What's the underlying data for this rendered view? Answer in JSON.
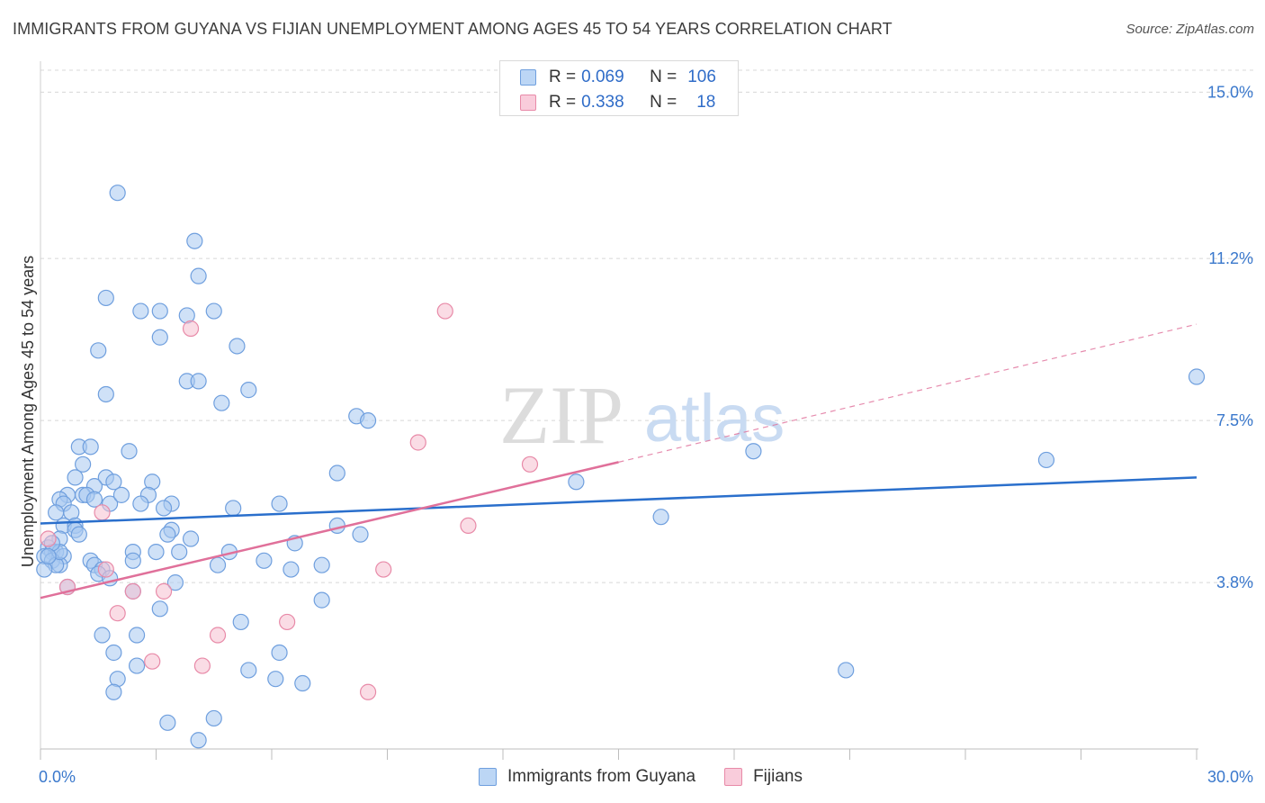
{
  "title": "IMMIGRANTS FROM GUYANA VS FIJIAN UNEMPLOYMENT AMONG AGES 45 TO 54 YEARS CORRELATION CHART",
  "source": "Source: ZipAtlas.com",
  "watermark": {
    "zip": "ZIP",
    "atlas": "atlas"
  },
  "legend_top": {
    "rows": [
      {
        "r_label": "R =",
        "r_value": "0.069",
        "n_label": "N =",
        "n_value": "106"
      },
      {
        "r_label": "R =",
        "r_value": "0.338",
        "n_label": "N =",
        "n_value": "18"
      }
    ]
  },
  "colors": {
    "blue_fill": "#a8c8f0",
    "blue_stroke": "#6f9fde",
    "blue_line": "#2a6fcc",
    "pink_fill": "#f6bfd0",
    "pink_stroke": "#e88aa8",
    "pink_line": "#e0709a",
    "tick_label": "#3a78cc",
    "grid": "#d8d8d8"
  },
  "chart_data": {
    "type": "scatter",
    "title": "IMMIGRANTS FROM GUYANA VS FIJIAN UNEMPLOYMENT AMONG AGES 45 TO 54 YEARS CORRELATION CHART",
    "xlabel": "",
    "ylabel": "Unemployment Among Ages 45 to 54 years",
    "xlim": [
      0,
      30
    ],
    "ylim": [
      0,
      15.5
    ],
    "x_tick_labels": [
      "0.0%",
      "30.0%"
    ],
    "y_ticks": [
      3.8,
      7.5,
      11.2,
      15.0
    ],
    "y_tick_labels": [
      "3.8%",
      "7.5%",
      "11.2%",
      "15.0%"
    ],
    "grid": true,
    "legend_position": "bottom",
    "series": [
      {
        "name": "Immigrants from Guyana",
        "color": "blue",
        "trend": {
          "x0": 0.0,
          "y0": 5.15,
          "x1": 30.0,
          "y1": 6.2
        },
        "points": [
          [
            2.0,
            12.7
          ],
          [
            4.0,
            11.6
          ],
          [
            4.1,
            10.8
          ],
          [
            1.7,
            10.3
          ],
          [
            2.6,
            10.0
          ],
          [
            3.1,
            10.0
          ],
          [
            3.8,
            9.9
          ],
          [
            4.5,
            10.0
          ],
          [
            3.1,
            9.4
          ],
          [
            5.1,
            9.2
          ],
          [
            1.5,
            9.1
          ],
          [
            3.8,
            8.4
          ],
          [
            4.1,
            8.4
          ],
          [
            5.4,
            8.2
          ],
          [
            1.7,
            8.1
          ],
          [
            4.7,
            7.9
          ],
          [
            8.2,
            7.6
          ],
          [
            8.5,
            7.5
          ],
          [
            1.0,
            6.9
          ],
          [
            1.3,
            6.9
          ],
          [
            2.3,
            6.8
          ],
          [
            1.1,
            6.5
          ],
          [
            7.7,
            6.3
          ],
          [
            1.7,
            6.2
          ],
          [
            1.9,
            6.1
          ],
          [
            2.9,
            6.1
          ],
          [
            1.4,
            6.0
          ],
          [
            0.7,
            5.8
          ],
          [
            1.1,
            5.8
          ],
          [
            1.2,
            5.8
          ],
          [
            2.8,
            5.8
          ],
          [
            0.5,
            5.7
          ],
          [
            0.6,
            5.6
          ],
          [
            1.8,
            5.6
          ],
          [
            2.6,
            5.6
          ],
          [
            3.4,
            5.6
          ],
          [
            5.0,
            5.5
          ],
          [
            6.2,
            5.6
          ],
          [
            3.2,
            5.5
          ],
          [
            0.4,
            5.4
          ],
          [
            0.8,
            5.4
          ],
          [
            0.6,
            5.1
          ],
          [
            0.9,
            5.1
          ],
          [
            7.7,
            5.1
          ],
          [
            3.4,
            5.0
          ],
          [
            0.9,
            5.0
          ],
          [
            1.0,
            4.9
          ],
          [
            8.3,
            4.9
          ],
          [
            3.3,
            4.9
          ],
          [
            3.9,
            4.8
          ],
          [
            0.5,
            4.8
          ],
          [
            6.6,
            4.7
          ],
          [
            0.2,
            4.6
          ],
          [
            0.3,
            4.5
          ],
          [
            0.4,
            4.5
          ],
          [
            2.4,
            4.5
          ],
          [
            3.0,
            4.5
          ],
          [
            3.6,
            4.5
          ],
          [
            4.9,
            4.5
          ],
          [
            0.6,
            4.4
          ],
          [
            0.1,
            4.4
          ],
          [
            0.3,
            4.3
          ],
          [
            2.4,
            4.3
          ],
          [
            1.3,
            4.3
          ],
          [
            0.5,
            4.2
          ],
          [
            5.8,
            4.3
          ],
          [
            7.3,
            4.2
          ],
          [
            0.4,
            4.2
          ],
          [
            0.1,
            4.1
          ],
          [
            1.4,
            4.2
          ],
          [
            4.6,
            4.2
          ],
          [
            1.6,
            4.1
          ],
          [
            6.5,
            4.1
          ],
          [
            1.5,
            4.0
          ],
          [
            1.8,
            3.9
          ],
          [
            3.5,
            3.8
          ],
          [
            0.7,
            3.7
          ],
          [
            2.4,
            3.6
          ],
          [
            7.3,
            3.4
          ],
          [
            3.1,
            3.2
          ],
          [
            5.2,
            2.9
          ],
          [
            1.6,
            2.6
          ],
          [
            2.5,
            2.6
          ],
          [
            1.9,
            2.2
          ],
          [
            6.2,
            2.2
          ],
          [
            2.5,
            1.9
          ],
          [
            5.4,
            1.8
          ],
          [
            20.9,
            1.8
          ],
          [
            2.0,
            1.6
          ],
          [
            6.1,
            1.6
          ],
          [
            6.8,
            1.5
          ],
          [
            1.9,
            1.3
          ],
          [
            4.5,
            0.7
          ],
          [
            3.3,
            0.6
          ],
          [
            4.1,
            0.2
          ],
          [
            13.9,
            6.1
          ],
          [
            16.1,
            5.3
          ],
          [
            18.5,
            6.8
          ],
          [
            26.1,
            6.6
          ],
          [
            30.0,
            8.5
          ],
          [
            2.1,
            5.8
          ],
          [
            0.9,
            6.2
          ],
          [
            1.4,
            5.7
          ],
          [
            0.5,
            4.5
          ],
          [
            0.3,
            4.7
          ],
          [
            0.2,
            4.4
          ]
        ]
      },
      {
        "name": "Fijians",
        "color": "pink",
        "trend": {
          "x0": 0.0,
          "y0": 3.45,
          "x1": 15.0,
          "y1": 6.55,
          "dash_to_x": 30.0,
          "dash_to_y": 9.7
        },
        "points": [
          [
            10.5,
            10.0
          ],
          [
            3.9,
            9.6
          ],
          [
            9.8,
            7.0
          ],
          [
            12.7,
            6.5
          ],
          [
            1.6,
            5.4
          ],
          [
            11.1,
            5.1
          ],
          [
            8.9,
            4.1
          ],
          [
            1.7,
            4.1
          ],
          [
            0.7,
            3.7
          ],
          [
            2.4,
            3.6
          ],
          [
            3.2,
            3.6
          ],
          [
            2.0,
            3.1
          ],
          [
            6.4,
            2.9
          ],
          [
            4.6,
            2.6
          ],
          [
            2.9,
            2.0
          ],
          [
            4.2,
            1.9
          ],
          [
            8.5,
            1.3
          ],
          [
            0.2,
            4.8
          ]
        ]
      }
    ]
  },
  "bottom_legend": [
    "Immigrants from Guyana",
    "Fijians"
  ]
}
